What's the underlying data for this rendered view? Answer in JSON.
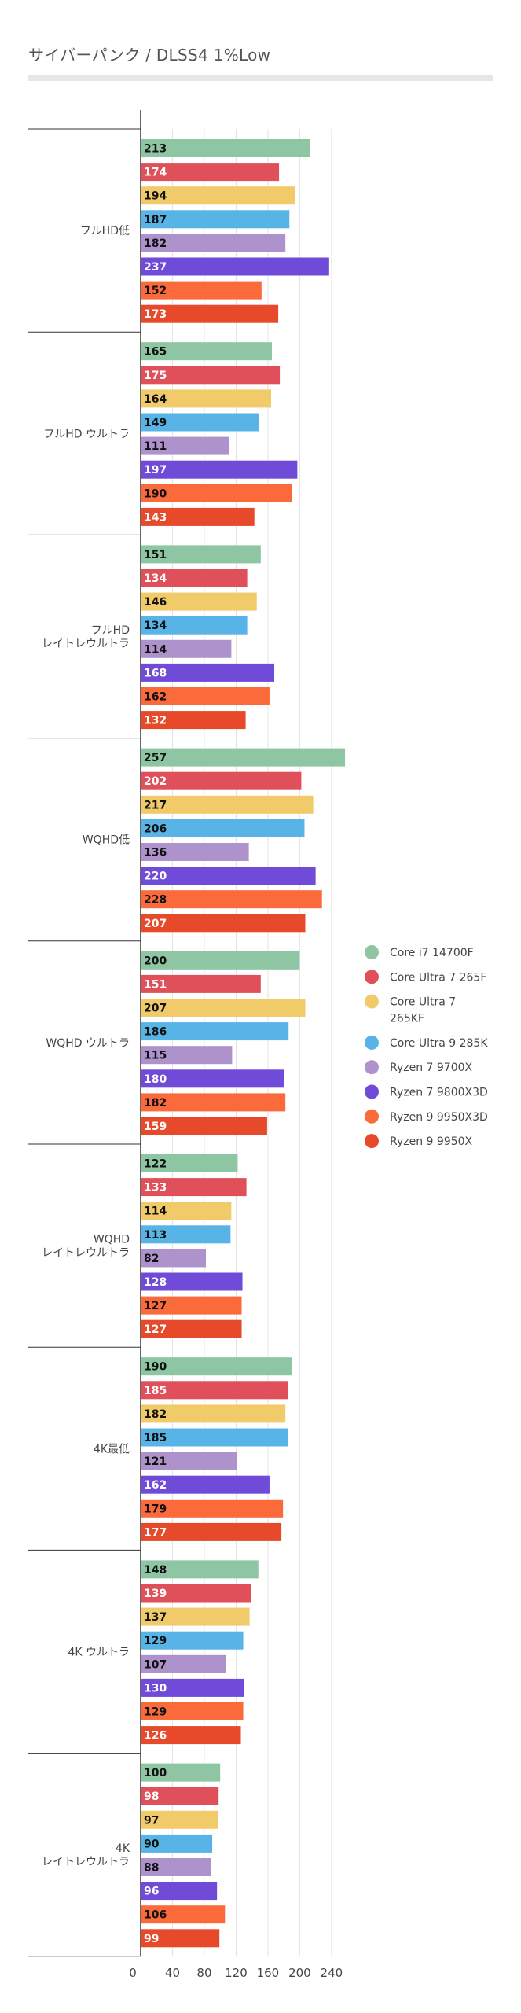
{
  "chart_data": {
    "type": "bar",
    "orientation": "horizontal",
    "title": "サイバーパンク / DLSS4 1%Low",
    "xlabel": "",
    "ylabel": "",
    "xlim": [
      0,
      260
    ],
    "x_ticks": [
      0,
      40,
      80,
      120,
      160,
      200,
      240
    ],
    "legend_position": "right",
    "categories": [
      [
        "フルHD低"
      ],
      [
        "フルHD ウルトラ"
      ],
      [
        "フルHD",
        "レイトレウルトラ"
      ],
      [
        "WQHD低"
      ],
      [
        "WQHD ウルトラ"
      ],
      [
        "WQHD",
        "レイトレウルトラ"
      ],
      [
        "4K最低"
      ],
      [
        "4K ウルトラ"
      ],
      [
        "4K",
        "レイトレウルトラ"
      ]
    ],
    "series": [
      {
        "name": [
          "Core i7 14700F"
        ],
        "color": "#8ec6a4",
        "label_color": "#111111",
        "values": [
          213,
          165,
          151,
          257,
          200,
          122,
          190,
          148,
          100
        ]
      },
      {
        "name": [
          "Core Ultra 7 265F"
        ],
        "color": "#e0505a",
        "label_color": "#ffffff",
        "values": [
          174,
          175,
          134,
          202,
          151,
          133,
          185,
          139,
          98
        ]
      },
      {
        "name": [
          "Core Ultra 7",
          "265KF"
        ],
        "color": "#f1cb6a",
        "label_color": "#111111",
        "values": [
          194,
          164,
          146,
          217,
          207,
          114,
          182,
          137,
          97
        ]
      },
      {
        "name": [
          "Core Ultra 9 285K"
        ],
        "color": "#58b4e6",
        "label_color": "#111111",
        "values": [
          187,
          149,
          134,
          206,
          186,
          113,
          185,
          129,
          90
        ]
      },
      {
        "name": [
          "Ryzen 7 9700X"
        ],
        "color": "#ad92cc",
        "label_color": "#111111",
        "values": [
          182,
          111,
          114,
          136,
          115,
          82,
          121,
          107,
          88
        ]
      },
      {
        "name": [
          "Ryzen 7 9800X3D"
        ],
        "color": "#6f4bd8",
        "label_color": "#ffffff",
        "values": [
          237,
          197,
          168,
          220,
          180,
          128,
          162,
          130,
          96
        ]
      },
      {
        "name": [
          "Ryzen 9 9950X3D"
        ],
        "color": "#fb6a3a",
        "label_color": "#111111",
        "values": [
          152,
          190,
          162,
          228,
          182,
          127,
          179,
          129,
          106
        ]
      },
      {
        "name": [
          "Ryzen 9 9950X"
        ],
        "color": "#e64a2a",
        "label_color": "#ffffff",
        "values": [
          173,
          143,
          132,
          207,
          159,
          127,
          177,
          126,
          99
        ]
      }
    ]
  }
}
